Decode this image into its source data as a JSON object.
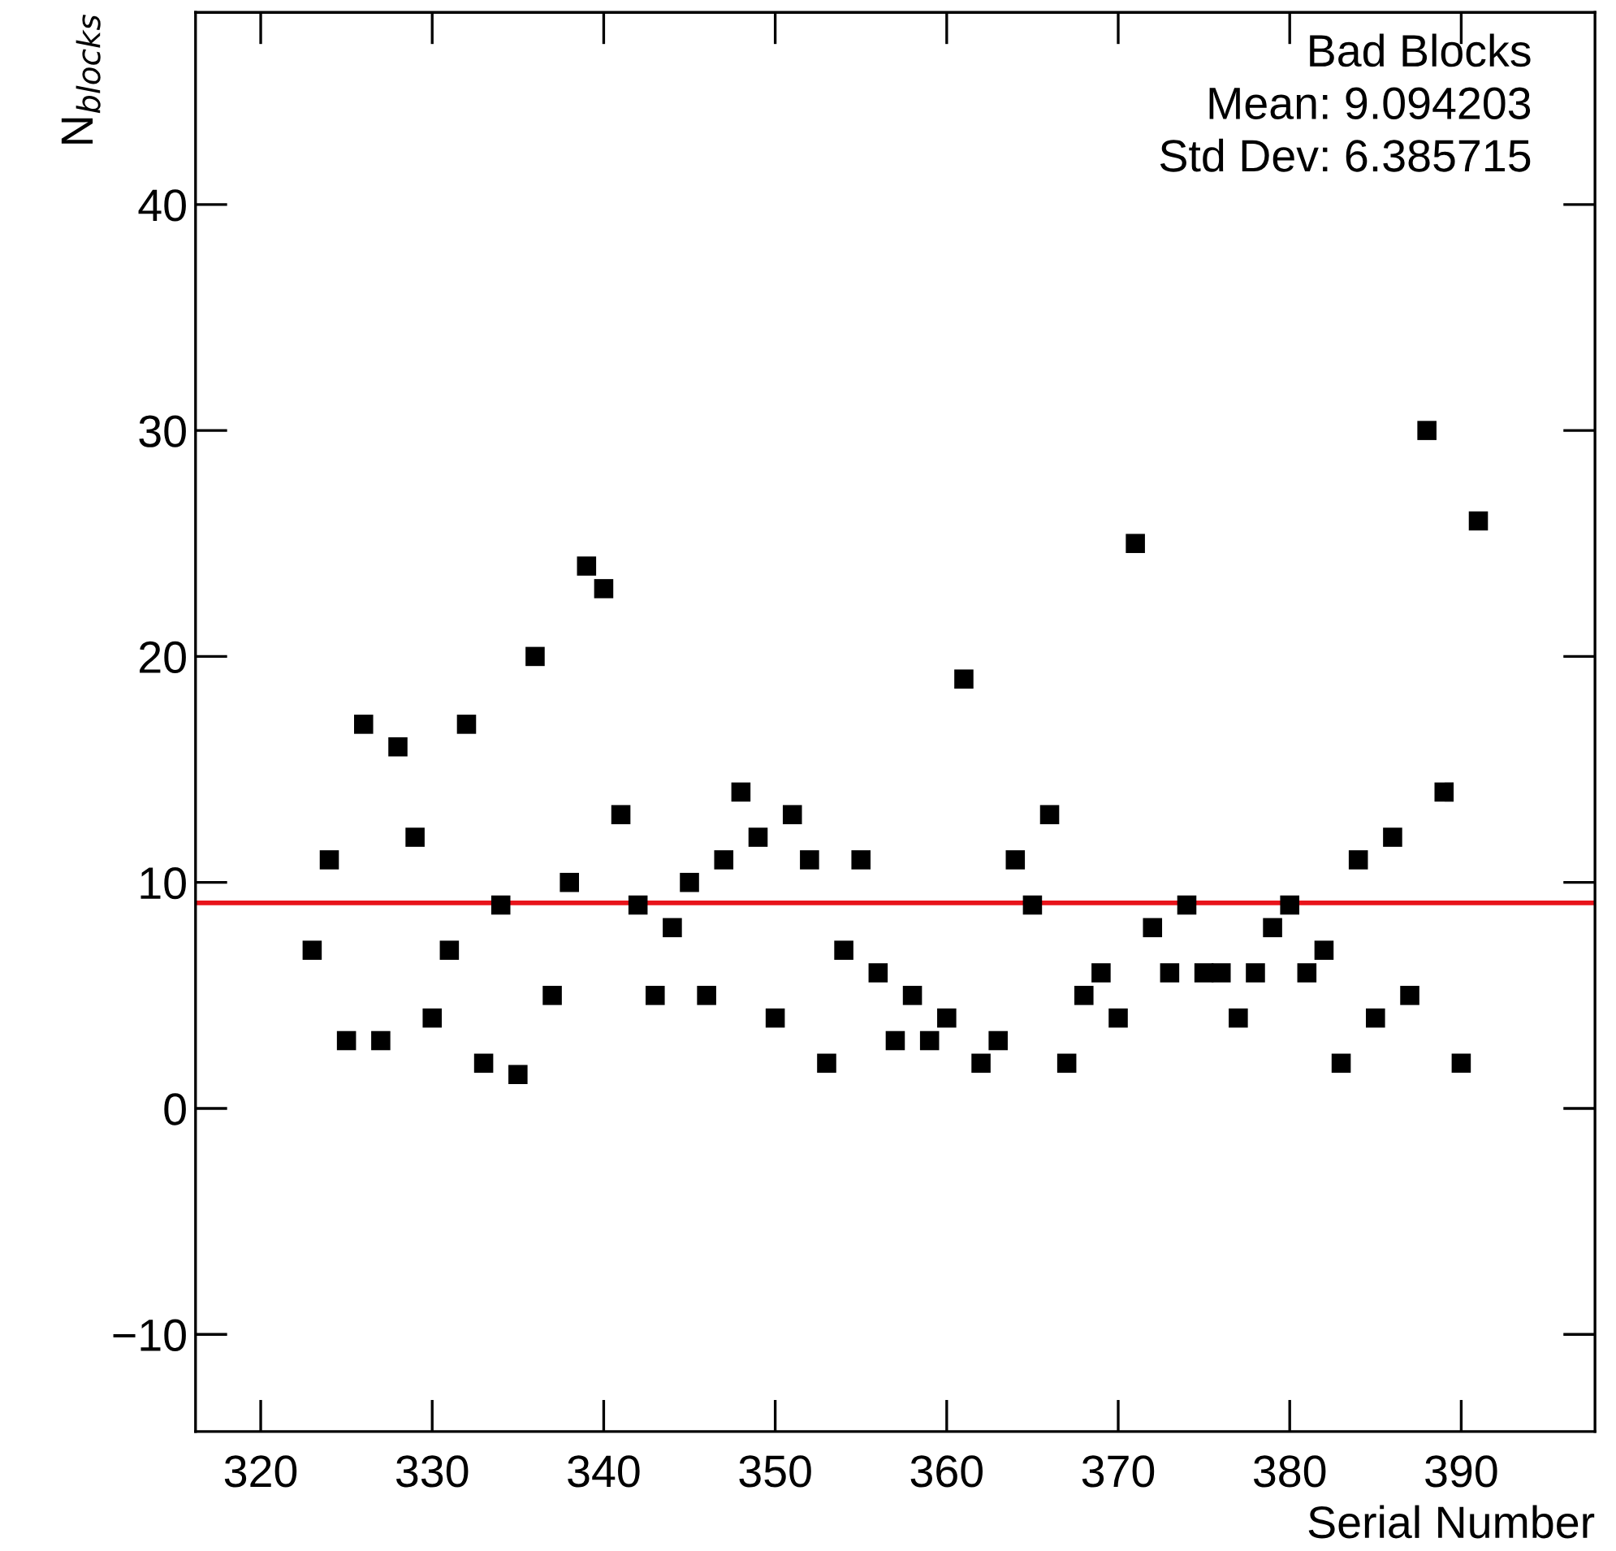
{
  "chart_data": {
    "type": "scatter",
    "x": [
      323,
      324,
      325,
      326,
      327,
      328,
      329,
      330,
      331,
      332,
      333,
      334,
      335,
      336,
      337,
      338,
      339,
      340,
      341,
      342,
      343,
      344,
      345,
      346,
      347,
      348,
      349,
      350,
      351,
      352,
      353,
      354,
      355,
      356,
      357,
      358,
      359,
      360,
      361,
      362,
      363,
      364,
      365,
      366,
      367,
      368,
      369,
      370,
      371,
      372,
      373,
      374,
      375,
      376,
      377,
      378,
      379,
      380,
      381,
      382,
      383,
      384,
      385,
      386,
      387,
      388,
      389,
      390,
      391
    ],
    "series": [
      {
        "color": "#000000",
        "values": [
          7,
          11,
          3,
          17,
          3,
          16,
          12,
          4,
          7,
          17,
          2,
          9,
          1.5,
          20,
          5,
          10,
          24,
          23,
          13,
          9,
          5,
          8,
          10,
          5,
          11,
          14,
          12,
          4,
          13,
          11,
          2,
          7,
          11,
          6,
          3,
          5,
          3,
          4,
          19,
          2,
          3,
          11,
          9,
          13,
          2,
          5,
          6,
          4,
          25,
          8,
          6,
          9,
          6,
          6,
          4,
          6,
          8,
          9,
          6,
          7,
          2,
          11,
          4,
          12,
          5,
          30,
          14,
          2,
          26
        ]
      }
    ],
    "marker": "square",
    "xlim": [
      316.2,
      397.8
    ],
    "ylim": [
      -14.3,
      48.5
    ],
    "xticks": [
      320,
      330,
      340,
      350,
      360,
      370,
      380,
      390
    ],
    "yticks": [
      -10,
      0,
      10,
      20,
      30,
      40
    ],
    "xlabel": "Serial Number",
    "ylabel": "N$_{blocks}$",
    "ref_lines": [
      {
        "axis": "y",
        "value": 9.094203,
        "color": "#e8141b"
      }
    ],
    "annotations": [
      "Bad Blocks",
      "Mean: 9.094203",
      "Std Dev: 6.385715"
    ],
    "grid": false
  }
}
